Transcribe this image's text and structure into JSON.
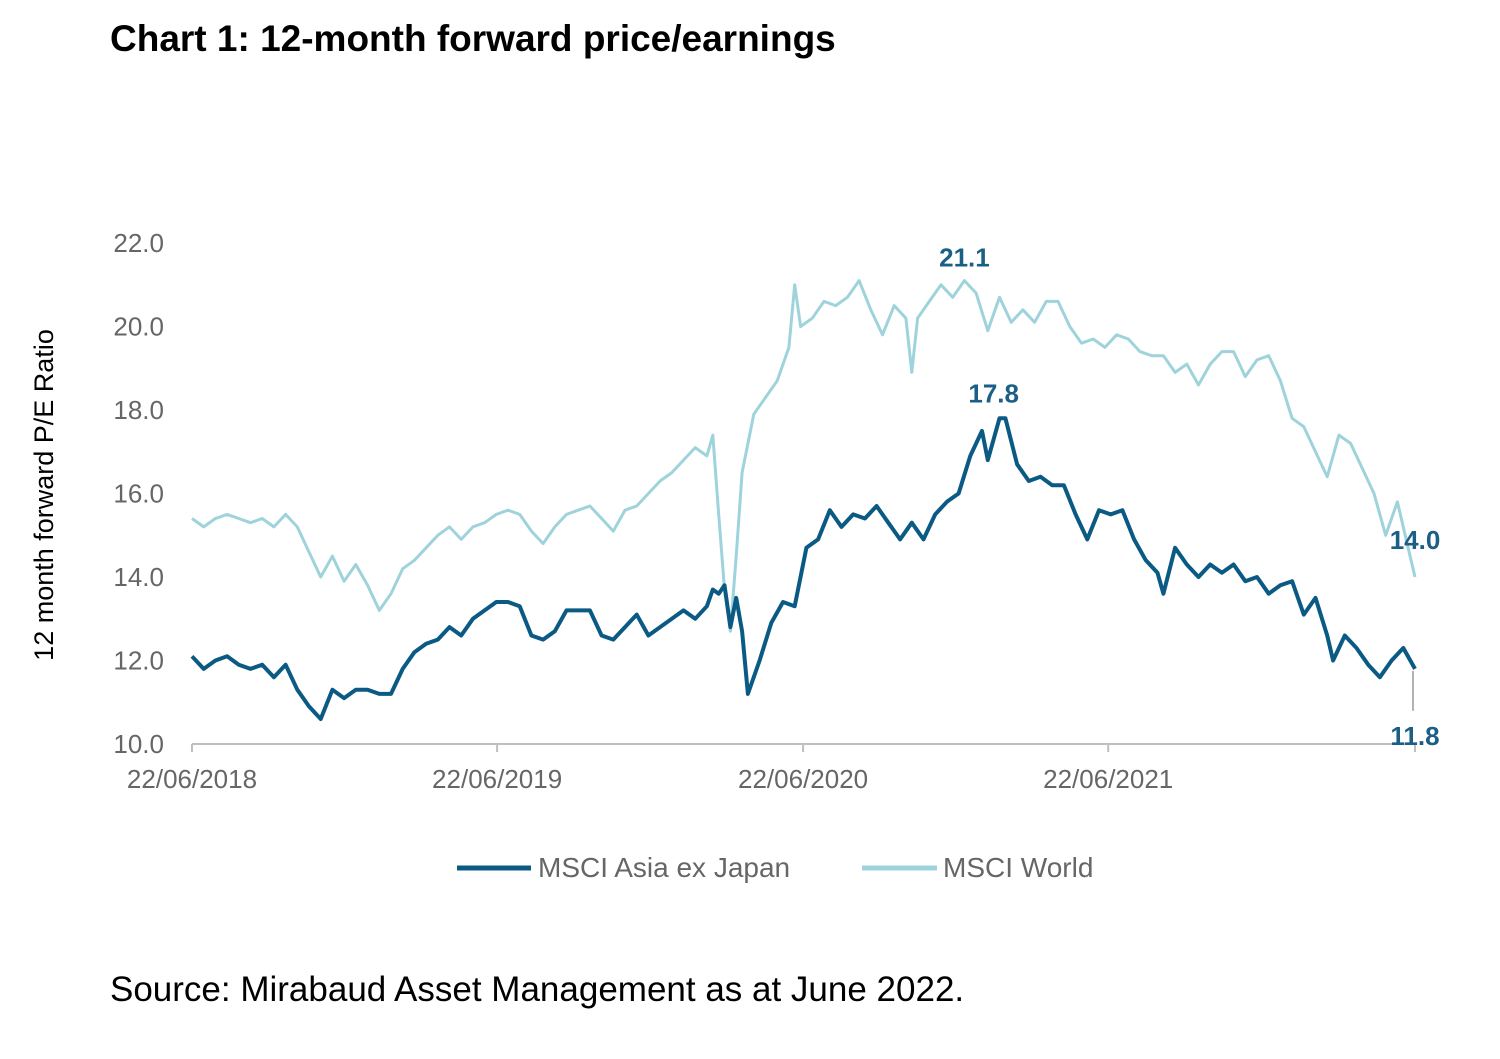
{
  "title": "Chart 1: 12-month forward price/earnings",
  "source": "Source: Mirabaud Asset Management as at June 2022.",
  "chart_data": {
    "type": "line",
    "ylabel": "12 month forward P/E Ratio",
    "ylim": [
      10.0,
      22.0
    ],
    "y_ticks": [
      "10.0",
      "12.0",
      "14.0",
      "16.0",
      "18.0",
      "20.0",
      "22.0"
    ],
    "xlim": [
      "2018-06-22",
      "2022-06-24"
    ],
    "x_ticks": [
      "22/06/2018",
      "22/06/2019",
      "22/06/2020",
      "22/06/2021"
    ],
    "grid": false,
    "legend_position": "bottom",
    "colors": {
      "asia": "#0b5a84",
      "world": "#9fd3dc",
      "annotation": "#1b5e86",
      "axis": "#bfbfbf"
    },
    "annotations": [
      {
        "text": "21.1",
        "x": "2021-01-01",
        "y": 21.1,
        "series": "MSCI World"
      },
      {
        "text": "17.8",
        "x": "2021-02-05",
        "y": 17.8,
        "series": "MSCI Asia ex Japan"
      },
      {
        "text": "14.0",
        "x": "2022-06-24",
        "y": 14.0,
        "series": "MSCI World"
      },
      {
        "text": "11.8",
        "x": "2022-06-24",
        "y": 11.8,
        "series": "MSCI Asia ex Japan"
      }
    ],
    "series": [
      {
        "name": "MSCI World",
        "color": "#9fd3dc",
        "points": [
          [
            "2018-06-22",
            15.4
          ],
          [
            "2018-07-06",
            15.2
          ],
          [
            "2018-07-20",
            15.4
          ],
          [
            "2018-08-03",
            15.5
          ],
          [
            "2018-08-17",
            15.4
          ],
          [
            "2018-08-31",
            15.3
          ],
          [
            "2018-09-14",
            15.4
          ],
          [
            "2018-09-28",
            15.2
          ],
          [
            "2018-10-12",
            15.5
          ],
          [
            "2018-10-26",
            15.2
          ],
          [
            "2018-11-09",
            14.6
          ],
          [
            "2018-11-23",
            14.0
          ],
          [
            "2018-12-07",
            14.5
          ],
          [
            "2018-12-21",
            13.9
          ],
          [
            "2019-01-04",
            14.3
          ],
          [
            "2019-01-18",
            13.8
          ],
          [
            "2019-02-01",
            13.2
          ],
          [
            "2019-02-15",
            13.6
          ],
          [
            "2019-03-01",
            14.2
          ],
          [
            "2019-03-15",
            14.4
          ],
          [
            "2019-03-29",
            14.7
          ],
          [
            "2019-04-12",
            15.0
          ],
          [
            "2019-04-26",
            15.2
          ],
          [
            "2019-05-10",
            14.9
          ],
          [
            "2019-05-24",
            15.2
          ],
          [
            "2019-06-07",
            15.3
          ],
          [
            "2019-06-21",
            15.5
          ],
          [
            "2019-07-05",
            15.6
          ],
          [
            "2019-07-19",
            15.5
          ],
          [
            "2019-08-02",
            15.1
          ],
          [
            "2019-08-16",
            14.8
          ],
          [
            "2019-08-30",
            15.2
          ],
          [
            "2019-09-13",
            15.5
          ],
          [
            "2019-09-27",
            15.6
          ],
          [
            "2019-10-11",
            15.7
          ],
          [
            "2019-10-25",
            15.4
          ],
          [
            "2019-11-08",
            15.1
          ],
          [
            "2019-11-22",
            15.6
          ],
          [
            "2019-12-06",
            15.7
          ],
          [
            "2019-12-20",
            16.0
          ],
          [
            "2020-01-03",
            16.3
          ],
          [
            "2020-01-17",
            16.5
          ],
          [
            "2020-01-31",
            16.8
          ],
          [
            "2020-02-14",
            17.1
          ],
          [
            "2020-02-28",
            16.9
          ],
          [
            "2020-03-06",
            17.4
          ],
          [
            "2020-03-13",
            15.5
          ],
          [
            "2020-03-20",
            13.7
          ],
          [
            "2020-03-27",
            12.7
          ],
          [
            "2020-04-03",
            14.5
          ],
          [
            "2020-04-10",
            16.5
          ],
          [
            "2020-04-24",
            17.9
          ],
          [
            "2020-05-08",
            18.3
          ],
          [
            "2020-05-22",
            18.7
          ],
          [
            "2020-06-05",
            19.5
          ],
          [
            "2020-06-12",
            21.0
          ],
          [
            "2020-06-19",
            20.0
          ],
          [
            "2020-07-03",
            20.2
          ],
          [
            "2020-07-17",
            20.6
          ],
          [
            "2020-07-31",
            20.5
          ],
          [
            "2020-08-14",
            20.7
          ],
          [
            "2020-08-28",
            21.1
          ],
          [
            "2020-09-11",
            20.4
          ],
          [
            "2020-09-25",
            19.8
          ],
          [
            "2020-10-09",
            20.5
          ],
          [
            "2020-10-23",
            20.2
          ],
          [
            "2020-10-30",
            18.9
          ],
          [
            "2020-11-06",
            20.2
          ],
          [
            "2020-11-20",
            20.6
          ],
          [
            "2020-12-04",
            21.0
          ],
          [
            "2020-12-18",
            20.7
          ],
          [
            "2021-01-01",
            21.1
          ],
          [
            "2021-01-15",
            20.8
          ],
          [
            "2021-01-29",
            19.9
          ],
          [
            "2021-02-12",
            20.7
          ],
          [
            "2021-02-26",
            20.1
          ],
          [
            "2021-03-12",
            20.4
          ],
          [
            "2021-03-26",
            20.1
          ],
          [
            "2021-04-09",
            20.6
          ],
          [
            "2021-04-23",
            20.6
          ],
          [
            "2021-05-07",
            20.0
          ],
          [
            "2021-05-21",
            19.6
          ],
          [
            "2021-06-04",
            19.7
          ],
          [
            "2021-06-18",
            19.5
          ],
          [
            "2021-07-02",
            19.8
          ],
          [
            "2021-07-16",
            19.7
          ],
          [
            "2021-07-30",
            19.4
          ],
          [
            "2021-08-13",
            19.3
          ],
          [
            "2021-08-27",
            19.3
          ],
          [
            "2021-09-10",
            18.9
          ],
          [
            "2021-09-24",
            19.1
          ],
          [
            "2021-10-08",
            18.6
          ],
          [
            "2021-10-22",
            19.1
          ],
          [
            "2021-11-05",
            19.4
          ],
          [
            "2021-11-19",
            19.4
          ],
          [
            "2021-12-03",
            18.8
          ],
          [
            "2021-12-17",
            19.2
          ],
          [
            "2021-12-31",
            19.3
          ],
          [
            "2022-01-14",
            18.7
          ],
          [
            "2022-01-28",
            17.8
          ],
          [
            "2022-02-11",
            17.6
          ],
          [
            "2022-02-25",
            17.0
          ],
          [
            "2022-03-11",
            16.4
          ],
          [
            "2022-03-25",
            17.4
          ],
          [
            "2022-04-08",
            17.2
          ],
          [
            "2022-04-22",
            16.6
          ],
          [
            "2022-05-06",
            16.0
          ],
          [
            "2022-05-20",
            15.0
          ],
          [
            "2022-06-03",
            15.8
          ],
          [
            "2022-06-17",
            14.6
          ],
          [
            "2022-06-24",
            14.0
          ]
        ]
      },
      {
        "name": "MSCI Asia ex Japan",
        "color": "#0b5a84",
        "points": [
          [
            "2018-06-22",
            12.1
          ],
          [
            "2018-07-06",
            11.8
          ],
          [
            "2018-07-20",
            12.0
          ],
          [
            "2018-08-03",
            12.1
          ],
          [
            "2018-08-17",
            11.9
          ],
          [
            "2018-08-31",
            11.8
          ],
          [
            "2018-09-14",
            11.9
          ],
          [
            "2018-09-28",
            11.6
          ],
          [
            "2018-10-12",
            11.9
          ],
          [
            "2018-10-26",
            11.3
          ],
          [
            "2018-11-09",
            10.9
          ],
          [
            "2018-11-23",
            10.6
          ],
          [
            "2018-12-07",
            11.3
          ],
          [
            "2018-12-21",
            11.1
          ],
          [
            "2019-01-04",
            11.3
          ],
          [
            "2019-01-18",
            11.3
          ],
          [
            "2019-02-01",
            11.2
          ],
          [
            "2019-02-15",
            11.2
          ],
          [
            "2019-03-01",
            11.8
          ],
          [
            "2019-03-15",
            12.2
          ],
          [
            "2019-03-29",
            12.4
          ],
          [
            "2019-04-12",
            12.5
          ],
          [
            "2019-04-26",
            12.8
          ],
          [
            "2019-05-10",
            12.6
          ],
          [
            "2019-05-24",
            13.0
          ],
          [
            "2019-06-07",
            13.2
          ],
          [
            "2019-06-21",
            13.4
          ],
          [
            "2019-07-05",
            13.4
          ],
          [
            "2019-07-19",
            13.3
          ],
          [
            "2019-08-02",
            12.6
          ],
          [
            "2019-08-16",
            12.5
          ],
          [
            "2019-08-30",
            12.7
          ],
          [
            "2019-09-13",
            13.2
          ],
          [
            "2019-09-27",
            13.2
          ],
          [
            "2019-10-11",
            13.2
          ],
          [
            "2019-10-25",
            12.6
          ],
          [
            "2019-11-08",
            12.5
          ],
          [
            "2019-11-22",
            12.8
          ],
          [
            "2019-12-06",
            13.1
          ],
          [
            "2019-12-20",
            12.6
          ],
          [
            "2020-01-03",
            12.8
          ],
          [
            "2020-01-17",
            13.0
          ],
          [
            "2020-01-31",
            13.2
          ],
          [
            "2020-02-14",
            13.0
          ],
          [
            "2020-02-28",
            13.3
          ],
          [
            "2020-03-06",
            13.7
          ],
          [
            "2020-03-13",
            13.6
          ],
          [
            "2020-03-20",
            13.8
          ],
          [
            "2020-03-27",
            12.8
          ],
          [
            "2020-04-03",
            13.5
          ],
          [
            "2020-04-10",
            12.7
          ],
          [
            "2020-04-17",
            11.2
          ],
          [
            "2020-05-01",
            12.0
          ],
          [
            "2020-05-15",
            12.9
          ],
          [
            "2020-05-29",
            13.4
          ],
          [
            "2020-06-12",
            13.3
          ],
          [
            "2020-06-26",
            14.7
          ],
          [
            "2020-07-10",
            14.9
          ],
          [
            "2020-07-24",
            15.6
          ],
          [
            "2020-08-07",
            15.2
          ],
          [
            "2020-08-21",
            15.5
          ],
          [
            "2020-09-04",
            15.4
          ],
          [
            "2020-09-18",
            15.7
          ],
          [
            "2020-10-02",
            15.3
          ],
          [
            "2020-10-16",
            14.9
          ],
          [
            "2020-10-30",
            15.3
          ],
          [
            "2020-11-13",
            14.9
          ],
          [
            "2020-11-27",
            15.5
          ],
          [
            "2020-12-11",
            15.8
          ],
          [
            "2020-12-25",
            16.0
          ],
          [
            "2021-01-08",
            16.9
          ],
          [
            "2021-01-22",
            17.5
          ],
          [
            "2021-01-29",
            16.8
          ],
          [
            "2021-02-12",
            17.8
          ],
          [
            "2021-02-19",
            17.8
          ],
          [
            "2021-03-05",
            16.7
          ],
          [
            "2021-03-19",
            16.3
          ],
          [
            "2021-04-02",
            16.4
          ],
          [
            "2021-04-16",
            16.2
          ],
          [
            "2021-04-30",
            16.2
          ],
          [
            "2021-05-14",
            15.5
          ],
          [
            "2021-05-28",
            14.9
          ],
          [
            "2021-06-11",
            15.6
          ],
          [
            "2021-06-25",
            15.5
          ],
          [
            "2021-07-09",
            15.6
          ],
          [
            "2021-07-23",
            14.9
          ],
          [
            "2021-08-06",
            14.4
          ],
          [
            "2021-08-20",
            14.1
          ],
          [
            "2021-08-27",
            13.6
          ],
          [
            "2021-09-10",
            14.7
          ],
          [
            "2021-09-24",
            14.3
          ],
          [
            "2021-10-08",
            14.0
          ],
          [
            "2021-10-22",
            14.3
          ],
          [
            "2021-11-05",
            14.1
          ],
          [
            "2021-11-19",
            14.3
          ],
          [
            "2021-12-03",
            13.9
          ],
          [
            "2021-12-17",
            14.0
          ],
          [
            "2021-12-31",
            13.6
          ],
          [
            "2022-01-14",
            13.8
          ],
          [
            "2022-01-28",
            13.9
          ],
          [
            "2022-02-11",
            13.1
          ],
          [
            "2022-02-25",
            13.5
          ],
          [
            "2022-03-11",
            12.6
          ],
          [
            "2022-03-18",
            12.0
          ],
          [
            "2022-04-01",
            12.6
          ],
          [
            "2022-04-15",
            12.3
          ],
          [
            "2022-04-29",
            11.9
          ],
          [
            "2022-05-13",
            11.6
          ],
          [
            "2022-05-27",
            12.0
          ],
          [
            "2022-06-10",
            12.3
          ],
          [
            "2022-06-24",
            11.8
          ]
        ]
      }
    ]
  }
}
